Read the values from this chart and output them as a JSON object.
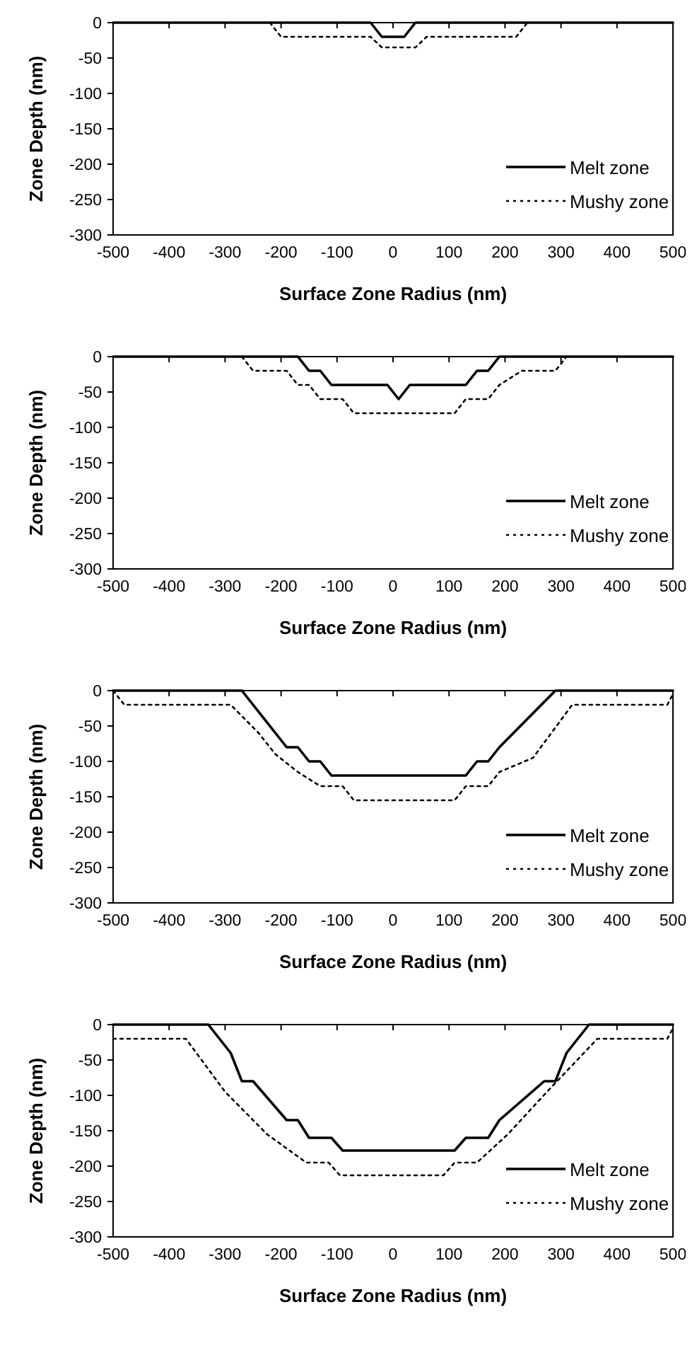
{
  "chart_data": [
    {
      "type": "line",
      "xlabel": "Surface Zone Radius (nm)",
      "ylabel": "Zone Depth (nm)",
      "xlim": [
        -500,
        500
      ],
      "ylim": [
        -300,
        0
      ],
      "xticks": [
        -500,
        -400,
        -300,
        -200,
        -100,
        0,
        100,
        200,
        300,
        400,
        500
      ],
      "yticks": [
        0,
        -50,
        -100,
        -150,
        -200,
        -250,
        -300
      ],
      "legend": "bottom right",
      "series": [
        {
          "name": "Melt zone",
          "color": "#000000",
          "line_style": "solid",
          "x": [
            -500,
            -40,
            -20,
            20,
            40,
            500
          ],
          "values": [
            0,
            0,
            -20,
            -20,
            0,
            0
          ]
        },
        {
          "name": "Mushy zone",
          "color": "#000000",
          "line_style": "dotted",
          "x": [
            -220,
            -200,
            -40,
            -20,
            40,
            60,
            220,
            240
          ],
          "values": [
            0,
            -20,
            -20,
            -35,
            -35,
            -20,
            -20,
            0
          ]
        }
      ]
    },
    {
      "type": "line",
      "xlabel": "Surface Zone Radius (nm)",
      "ylabel": "Zone Depth (nm)",
      "xlim": [
        -500,
        500
      ],
      "ylim": [
        -300,
        0
      ],
      "xticks": [
        -500,
        -400,
        -300,
        -200,
        -100,
        0,
        100,
        200,
        300,
        400,
        500
      ],
      "yticks": [
        0,
        -50,
        -100,
        -150,
        -200,
        -250,
        -300
      ],
      "legend": "bottom right",
      "series": [
        {
          "name": "Melt zone",
          "color": "#000000",
          "line_style": "solid",
          "x": [
            -500,
            -170,
            -150,
            -130,
            -110,
            -10,
            10,
            30,
            130,
            150,
            170,
            190,
            500
          ],
          "values": [
            0,
            0,
            -20,
            -20,
            -40,
            -40,
            -60,
            -40,
            -40,
            -20,
            -20,
            0,
            0
          ]
        },
        {
          "name": "Mushy zone",
          "color": "#000000",
          "line_style": "dotted",
          "x": [
            -270,
            -250,
            -190,
            -170,
            -150,
            -130,
            -90,
            -70,
            110,
            130,
            170,
            190,
            230,
            290,
            310
          ],
          "values": [
            0,
            -20,
            -20,
            -40,
            -40,
            -60,
            -60,
            -80,
            -80,
            -60,
            -60,
            -40,
            -20,
            -20,
            0
          ]
        }
      ]
    },
    {
      "type": "line",
      "xlabel": "Surface Zone Radius (nm)",
      "ylabel": "Zone Depth (nm)",
      "xlim": [
        -500,
        500
      ],
      "ylim": [
        -300,
        0
      ],
      "xticks": [
        -500,
        -400,
        -300,
        -200,
        -100,
        0,
        100,
        200,
        300,
        400,
        500
      ],
      "yticks": [
        0,
        -50,
        -100,
        -150,
        -200,
        -250,
        -300
      ],
      "legend": "bottom right",
      "series": [
        {
          "name": "Melt zone",
          "color": "#000000",
          "line_style": "solid",
          "x": [
            -500,
            -270,
            -190,
            -170,
            -150,
            -130,
            -110,
            130,
            150,
            170,
            190,
            290,
            500
          ],
          "values": [
            0,
            0,
            -80,
            -80,
            -100,
            -100,
            -120,
            -120,
            -100,
            -100,
            -80,
            0,
            0
          ]
        },
        {
          "name": "Mushy zone",
          "color": "#000000",
          "line_style": "dotted",
          "x": [
            -500,
            -480,
            -290,
            -240,
            -210,
            -170,
            -130,
            -90,
            -70,
            110,
            130,
            170,
            190,
            250,
            320,
            490,
            500
          ],
          "values": [
            0,
            -20,
            -20,
            -60,
            -90,
            -115,
            -135,
            -135,
            -155,
            -155,
            -135,
            -135,
            -115,
            -95,
            -20,
            -20,
            -5
          ]
        }
      ]
    },
    {
      "type": "line",
      "xlabel": "Surface Zone Radius (nm)",
      "ylabel": "Zone Depth (nm)",
      "xlim": [
        -500,
        500
      ],
      "ylim": [
        -300,
        0
      ],
      "xticks": [
        -500,
        -400,
        -300,
        -200,
        -100,
        0,
        100,
        200,
        300,
        400,
        500
      ],
      "yticks": [
        0,
        -50,
        -100,
        -150,
        -200,
        -250,
        -300
      ],
      "legend": "bottom right",
      "series": [
        {
          "name": "Melt zone",
          "color": "#000000",
          "line_style": "solid",
          "x": [
            -500,
            -330,
            -290,
            -270,
            -250,
            -190,
            -170,
            -150,
            -110,
            -90,
            110,
            130,
            170,
            190,
            270,
            290,
            310,
            350,
            500
          ],
          "values": [
            0,
            0,
            -40,
            -80,
            -80,
            -135,
            -135,
            -160,
            -160,
            -178,
            -178,
            -160,
            -160,
            -135,
            -80,
            -80,
            -40,
            0,
            0
          ]
        },
        {
          "name": "Mushy zone",
          "color": "#000000",
          "line_style": "dotted",
          "x": [
            -500,
            -370,
            -300,
            -225,
            -155,
            -115,
            -95,
            90,
            110,
            150,
            205,
            275,
            365,
            490,
            500
          ],
          "values": [
            -20,
            -20,
            -95,
            -155,
            -195,
            -195,
            -213,
            -213,
            -195,
            -195,
            -155,
            -95,
            -20,
            -20,
            -5
          ]
        }
      ]
    }
  ]
}
